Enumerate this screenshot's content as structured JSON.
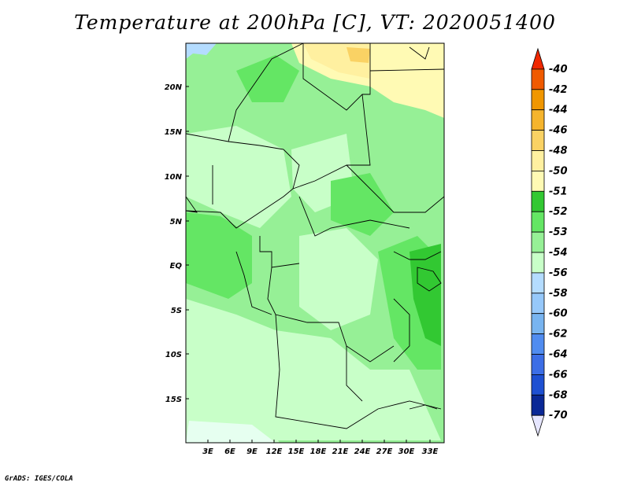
{
  "title": "Temperature at 200hPa [C], VT: 2020051400",
  "credit": "GrADS: IGES/COLA",
  "map": {
    "lat_labels": [
      "20N",
      "15N",
      "10N",
      "5N",
      "EQ",
      "5S",
      "10S",
      "15S"
    ],
    "lon_labels": [
      "3E",
      "6E",
      "9E",
      "12E",
      "15E",
      "18E",
      "21E",
      "24E",
      "27E",
      "30E",
      "33E"
    ]
  },
  "colorbar": {
    "labels": [
      "-40",
      "-42",
      "-44",
      "-46",
      "-48",
      "-50",
      "-51",
      "-52",
      "-53",
      "-54",
      "-56",
      "-58",
      "-60",
      "-62",
      "-64",
      "-66",
      "-68",
      "-70"
    ],
    "colors": [
      "#f02800",
      "#f05a00",
      "#f09600",
      "#f5b42d",
      "#fad264",
      "#fff0a0",
      "#fffab4",
      "#32c832",
      "#64e664",
      "#96f096",
      "#c8ffc8",
      "#b4dcff",
      "#96c8fa",
      "#78b4f0",
      "#508cf0",
      "#3c6ee6",
      "#1e50d2",
      "#0a2896",
      "#e6e6ff"
    ]
  }
}
